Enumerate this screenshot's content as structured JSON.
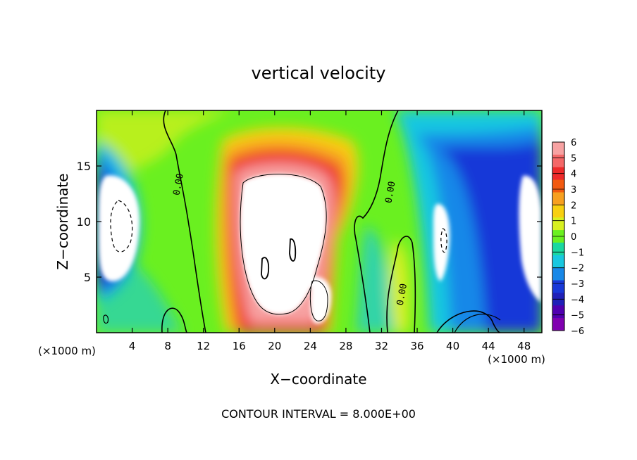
{
  "chart_data": {
    "type": "heatmap",
    "title": "vertical velocity",
    "xlabel": "X−coordinate",
    "ylabel": "Z−coordinate",
    "x_units": "(×1000 m)",
    "footer": "CONTOUR INTERVAL = 8.000E+00",
    "xlim": [
      0,
      50
    ],
    "ylim": [
      0,
      20
    ],
    "x_ticks": [
      4,
      8,
      12,
      16,
      20,
      24,
      28,
      32,
      36,
      40,
      44,
      48
    ],
    "y_ticks": [
      5,
      10,
      15
    ],
    "contour_labels": [
      {
        "text": "0.00",
        "x": 9.5,
        "z": 13.3
      },
      {
        "text": "0.00",
        "x": 33.3,
        "z": 12.6
      },
      {
        "text": "0.00",
        "x": 34.6,
        "z": 3.4
      }
    ],
    "colorbar": {
      "levels": [
        "6",
        "5",
        "4",
        "3",
        "2",
        "1",
        "0",
        "−1",
        "−2",
        "−3",
        "−4",
        "−5",
        "−6"
      ],
      "range": [
        -6,
        6
      ],
      "colors": [
        "#f7a2a2",
        "#f46868",
        "#ee2a2a",
        "#f25a10",
        "#f7a020",
        "#f8d010",
        "#d8f020",
        "#6af020",
        "#1ad8a0",
        "#18c8e0",
        "#1888e8",
        "#1838d8",
        "#2020b8",
        "#5000b0",
        "#8000b0"
      ]
    },
    "features": [
      {
        "label": "updraft core",
        "x": 21,
        "z": 8,
        "value": "> 6"
      },
      {
        "label": "updraft",
        "x": 25.5,
        "z": 2.5,
        "value": "> 6"
      },
      {
        "label": "downdraft",
        "x": 2.5,
        "z": 9,
        "value": "< -6"
      },
      {
        "label": "downdraft",
        "x": 38.5,
        "z": 8,
        "value": "< -6"
      },
      {
        "label": "downdraft",
        "x": 47.5,
        "z": 8,
        "value": "< -6"
      }
    ]
  }
}
